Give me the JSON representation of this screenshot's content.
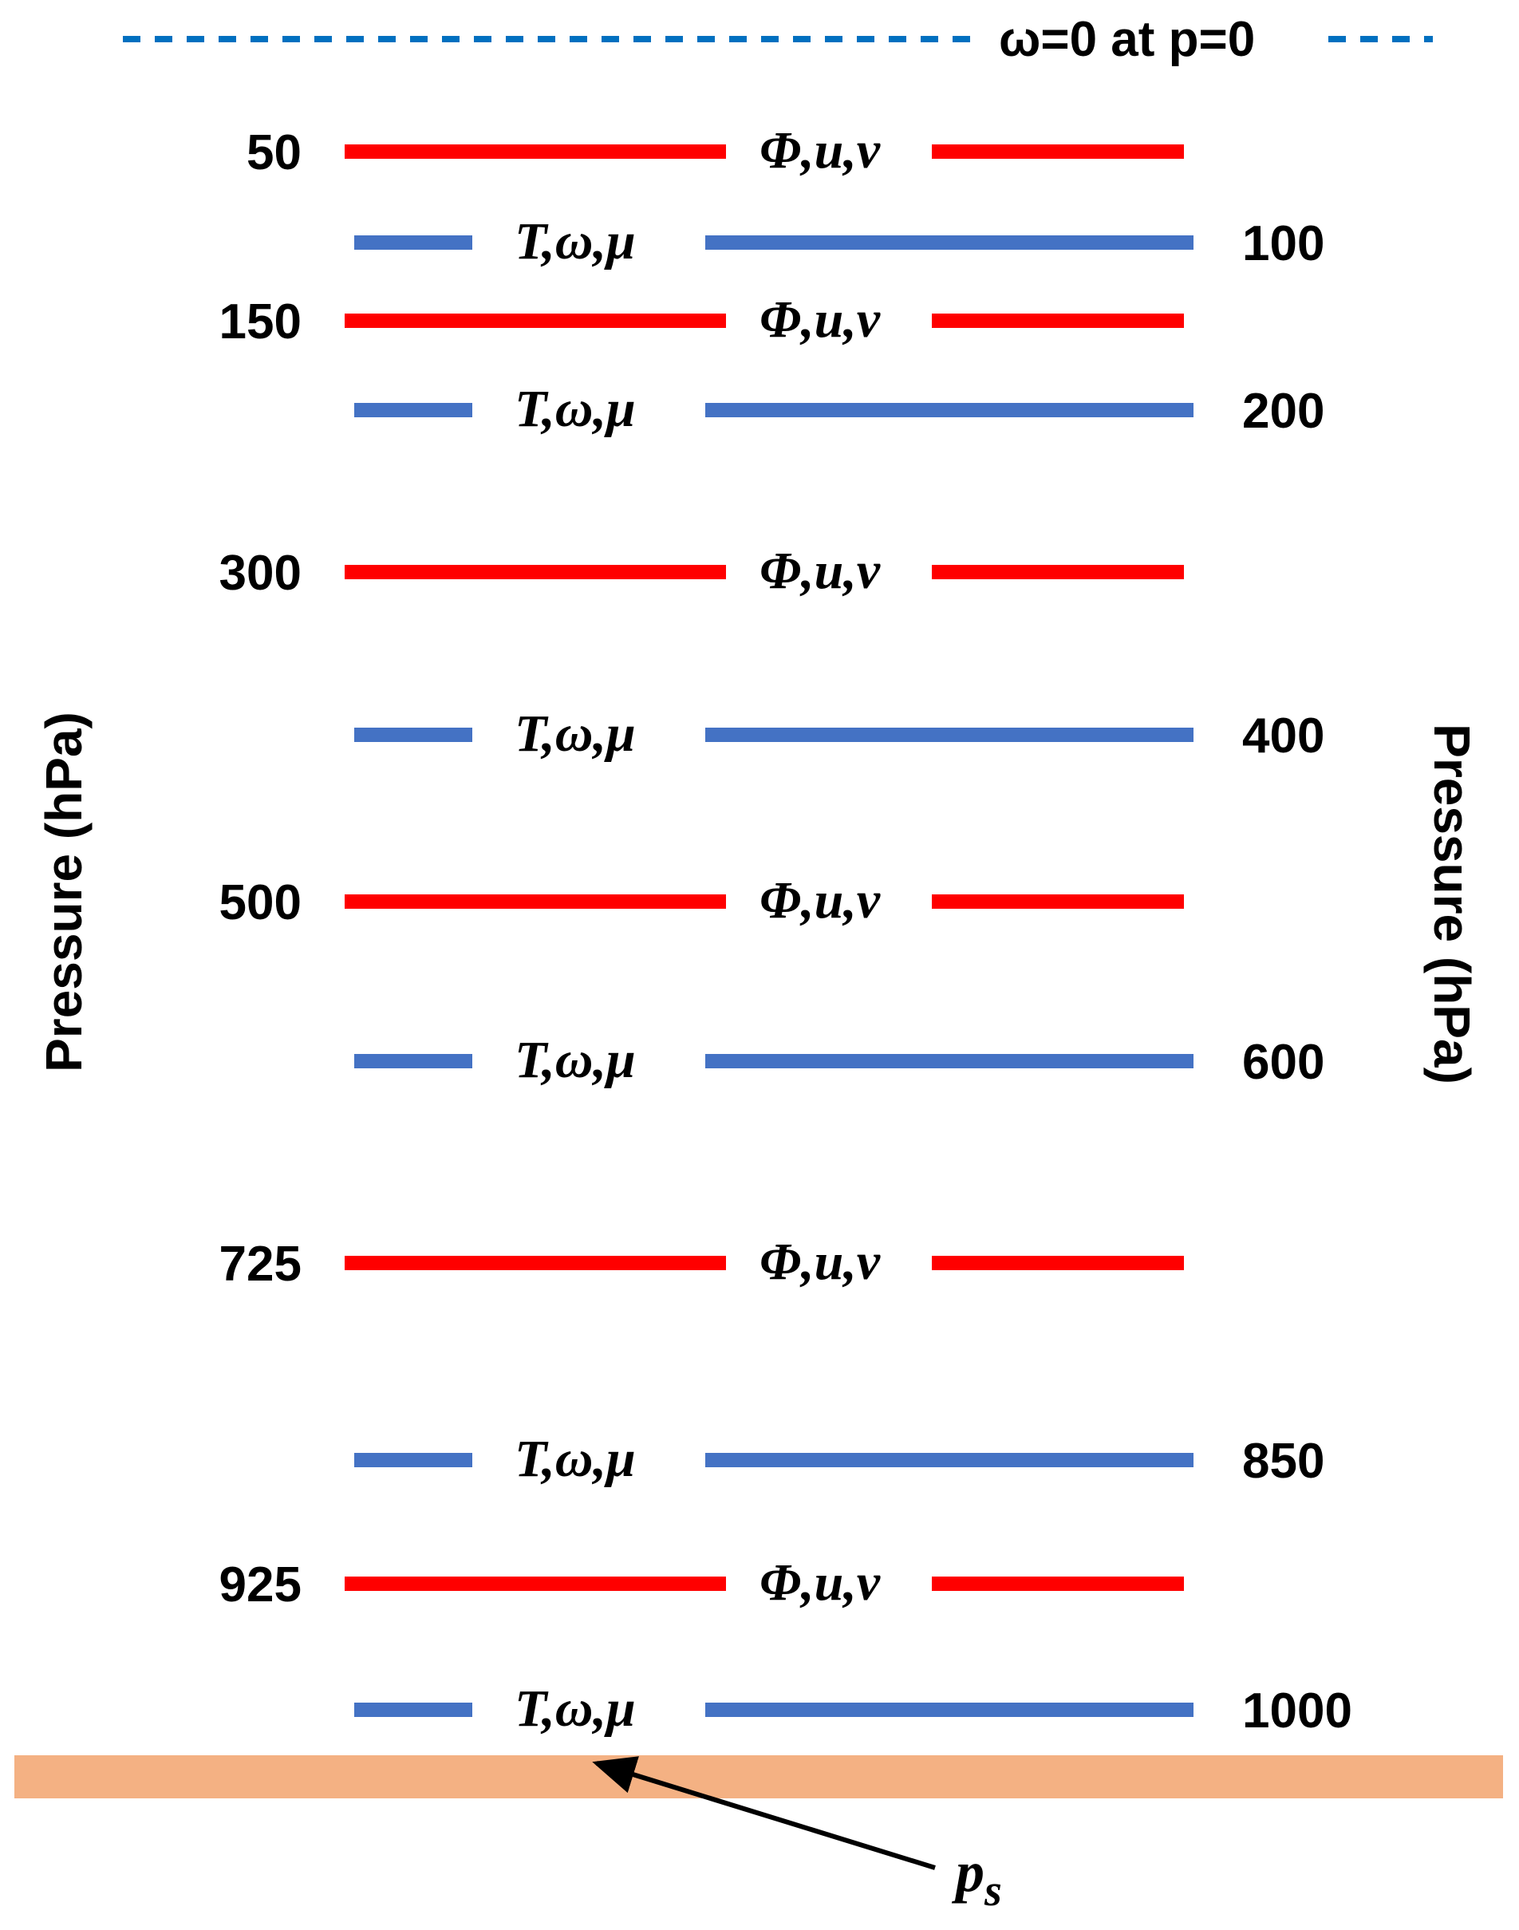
{
  "top_boundary": {
    "label": "ω=0 at p=0",
    "color": "#0070C0"
  },
  "axis_left_title": "Pressure (hPa)",
  "axis_right_title": "Pressure (hPa)",
  "surface": {
    "label": "ps",
    "color": "#F4B183"
  },
  "colors": {
    "phi_levels": "#FF0000",
    "t_levels": "#4472C4"
  },
  "levels": [
    {
      "pressure": "50",
      "vars": "Φ,u,v",
      "kind": "phi"
    },
    {
      "pressure": "100",
      "vars": "T,ω,μ",
      "kind": "t"
    },
    {
      "pressure": "150",
      "vars": "Φ,u,v",
      "kind": "phi"
    },
    {
      "pressure": "200",
      "vars": "T,ω,μ",
      "kind": "t"
    },
    {
      "pressure": "300",
      "vars": "Φ,u,v",
      "kind": "phi"
    },
    {
      "pressure": "400",
      "vars": "T,ω,μ",
      "kind": "t"
    },
    {
      "pressure": "500",
      "vars": "Φ,u,v",
      "kind": "phi"
    },
    {
      "pressure": "600",
      "vars": "T,ω,μ",
      "kind": "t"
    },
    {
      "pressure": "725",
      "vars": "Φ,u,v",
      "kind": "phi"
    },
    {
      "pressure": "850",
      "vars": "T,ω,μ",
      "kind": "t"
    },
    {
      "pressure": "925",
      "vars": "Φ,u,v",
      "kind": "phi"
    },
    {
      "pressure": "1000",
      "vars": "T,ω,μ",
      "kind": "t"
    }
  ]
}
